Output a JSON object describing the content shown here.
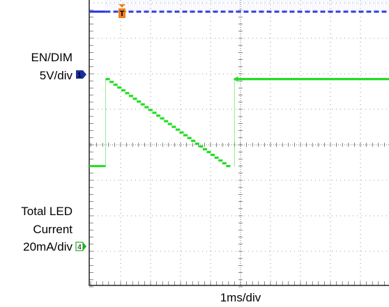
{
  "chart_data": {
    "type": "line",
    "title": "",
    "xlabel": "1ms/div",
    "x_divisions": 10,
    "y_divisions": 8,
    "grid": true,
    "trigger_marker": "T",
    "time_units": "ms",
    "series": [
      {
        "id": "ch1",
        "label_lines": [
          "EN/DIM",
          "5V/div"
        ],
        "channel_marker": "1",
        "color": "#2233dd",
        "style": "dashed",
        "kind": "pwm",
        "idle_level_div": 3.75,
        "low_level_div": 3.75,
        "high_level_div": 4.75,
        "start_time": 0.5
      },
      {
        "id": "ch4",
        "label_lines": [
          "Total LED",
          "Current",
          "20mA/div"
        ],
        "channel_marker": "4",
        "color": "#22dd22",
        "style": "solid",
        "kind": "staircase",
        "idle_level_div": -0.6,
        "start_time": 0.5,
        "end_time": 4.65,
        "start_level_div": 1.85,
        "end_level_div": -0.6,
        "steps": 32,
        "next_cycle_time": 4.8
      }
    ]
  }
}
